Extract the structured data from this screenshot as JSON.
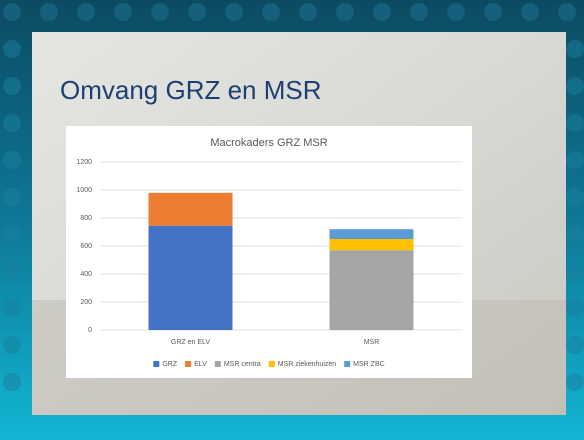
{
  "slide": {
    "title": "Omvang GRZ en MSR"
  },
  "chart_data": {
    "type": "stacked-bar",
    "title": "Macrokaders GRZ MSR",
    "categories": [
      "GRZ en ELV",
      "MSR"
    ],
    "series": [
      {
        "name": "GRZ",
        "color": "#4472c4",
        "values": [
          745,
          0
        ]
      },
      {
        "name": "ELV",
        "color": "#ed7d31",
        "values": [
          235,
          0
        ]
      },
      {
        "name": "MSR centra",
        "color": "#a5a5a5",
        "values": [
          0,
          570
        ]
      },
      {
        "name": "MSR ziekenhuizen",
        "color": "#ffc000",
        "values": [
          0,
          80
        ]
      },
      {
        "name": "MSR ZBC",
        "color": "#5b9bd5",
        "values": [
          0,
          70
        ]
      }
    ],
    "ylim": [
      0,
      1200
    ],
    "yticks": [
      0,
      200,
      400,
      600,
      800,
      1000,
      1200
    ],
    "grid": true,
    "legend": "bottom"
  }
}
